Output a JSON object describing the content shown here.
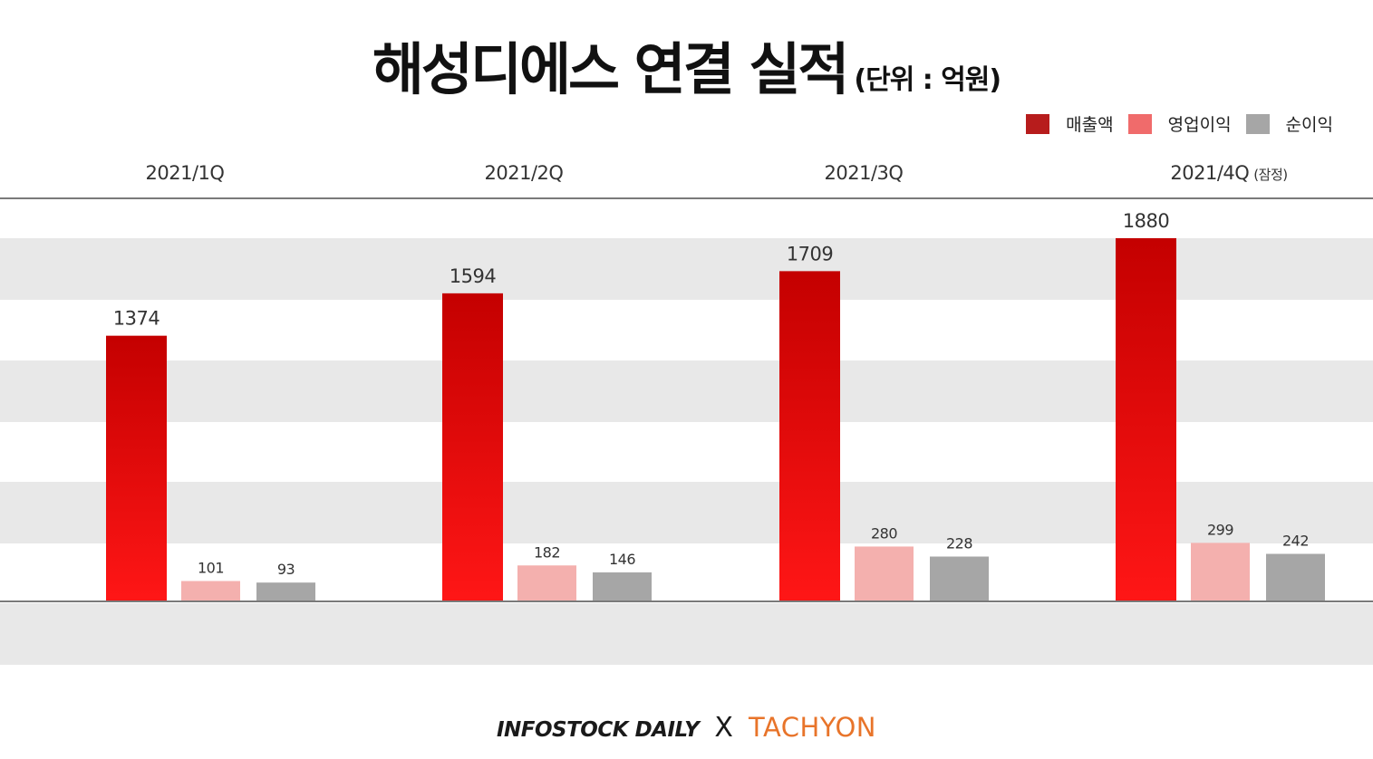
{
  "header": {
    "title": "해성디에스 연결 실적",
    "unit": "(단위 : 억원)"
  },
  "legend": [
    {
      "label": "매출액",
      "color": "#b71c1c"
    },
    {
      "label": "영업이익",
      "color": "#f06b6b"
    },
    {
      "label": "순이익",
      "color": "#a6a6a6"
    }
  ],
  "quarters": [
    {
      "label": "2021/1Q",
      "note": ""
    },
    {
      "label": "2021/2Q",
      "note": ""
    },
    {
      "label": "2021/3Q",
      "note": ""
    },
    {
      "label": "2021/4Q",
      "note": "(잠정)"
    }
  ],
  "chart_data": {
    "type": "bar",
    "categories": [
      "2021/1Q",
      "2021/2Q",
      "2021/3Q",
      "2021/4Q (잠정)"
    ],
    "series": [
      {
        "name": "매출액",
        "values": [
          1374,
          1594,
          1709,
          1880
        ],
        "color": "#cc0000"
      },
      {
        "name": "영업이익",
        "values": [
          101,
          182,
          280,
          299
        ],
        "color": "#f4b0ae"
      },
      {
        "name": "순이익",
        "values": [
          93,
          146,
          228,
          242
        ],
        "color": "#a6a6a6"
      }
    ],
    "title": "해성디에스 연결 실적",
    "unit": "억원",
    "ylim": [
      0,
      1880
    ],
    "grid": true,
    "legend_position": "top-right"
  },
  "footer": {
    "brand_left": "INFOSTOCK DAILY",
    "separator": "X",
    "brand_right": "TACHYON"
  }
}
